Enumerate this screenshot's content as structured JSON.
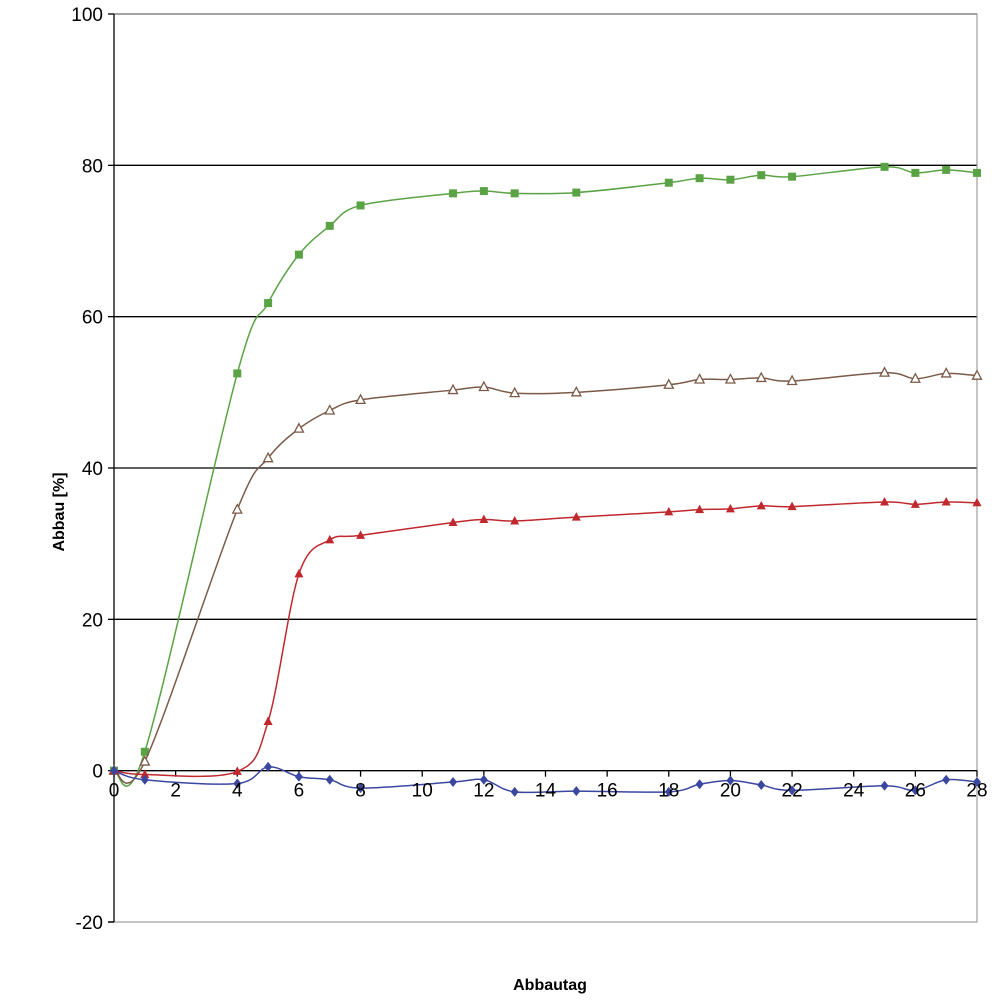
{
  "chart_data": {
    "type": "line",
    "title": "",
    "xlabel": "Abbautag",
    "ylabel": "Abbau [%]",
    "xlim": [
      0,
      28
    ],
    "ylim": [
      -20,
      100
    ],
    "x_ticks": [
      0,
      2,
      4,
      6,
      8,
      10,
      12,
      14,
      16,
      18,
      20,
      22,
      24,
      26,
      28
    ],
    "y_ticks": [
      -20,
      0,
      20,
      40,
      60,
      80,
      100
    ],
    "gridlines": "horizontal",
    "legend": "none",
    "x": [
      0,
      1,
      4,
      5,
      6,
      7,
      8,
      11,
      12,
      13,
      15,
      18,
      19,
      20,
      21,
      22,
      25,
      26,
      27,
      28
    ],
    "series": [
      {
        "color": "#5aa345",
        "marker": "square",
        "values": [
          0,
          2.5,
          52.5,
          61.8,
          68.2,
          72,
          74.7,
          76.3,
          76.6,
          76.3,
          76.4,
          77.7,
          78.3,
          78.1,
          78.7,
          78.5,
          79.8,
          79,
          79.4,
          79
        ]
      },
      {
        "color": "#7b5a48",
        "marker": "triangle-open",
        "values": [
          0,
          1.2,
          34.5,
          41.3,
          45.2,
          47.6,
          49,
          50.3,
          50.7,
          49.9,
          50,
          51,
          51.7,
          51.7,
          51.9,
          51.5,
          52.6,
          51.8,
          52.5,
          52.2
        ]
      },
      {
        "color": "#c0282d",
        "marker": "triangle",
        "values": [
          0,
          -0.5,
          -0.1,
          6.5,
          26,
          30.5,
          31.1,
          32.8,
          33.2,
          33,
          33.5,
          34.2,
          34.5,
          34.6,
          35,
          34.9,
          35.5,
          35.2,
          35.5,
          35.4
        ]
      },
      {
        "color": "#3a47a0",
        "marker": "diamond",
        "values": [
          0,
          -1.2,
          -1.7,
          0.5,
          -0.8,
          -1.2,
          -2.3,
          -1.5,
          -1.2,
          -2.8,
          -2.7,
          -2.8,
          -1.8,
          -1.3,
          -1.9,
          -2.6,
          -2,
          -2.6,
          -1.2,
          -1.5
        ]
      }
    ]
  }
}
